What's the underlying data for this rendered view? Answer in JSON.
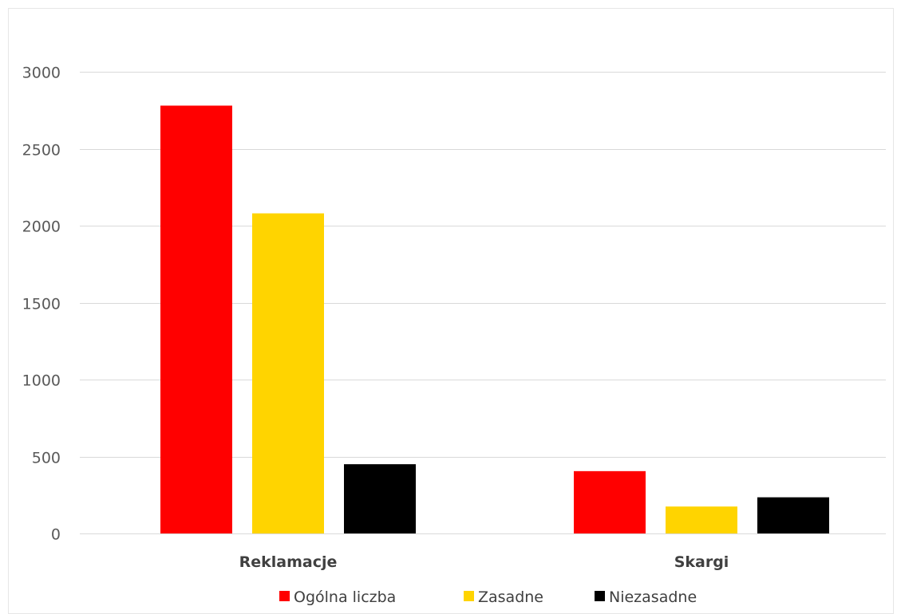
{
  "chart_data": {
    "type": "bar",
    "title": "",
    "xlabel": "",
    "ylabel": "",
    "categories": [
      "Reklamacje",
      "Skargi"
    ],
    "series": [
      {
        "name": "Ogólna liczba",
        "color": "#ff0000",
        "values": [
          2780,
          405
        ]
      },
      {
        "name": "Zasadne",
        "color": "#ffd400",
        "values": [
          2080,
          175
        ]
      },
      {
        "name": "Niezasadne",
        "color": "#000000",
        "values": [
          450,
          235
        ]
      }
    ],
    "ylim": [
      0,
      3000
    ],
    "yticks": [
      0,
      500,
      1000,
      1500,
      2000,
      2500,
      3000
    ],
    "grid": true,
    "legend_position": "bottom"
  }
}
